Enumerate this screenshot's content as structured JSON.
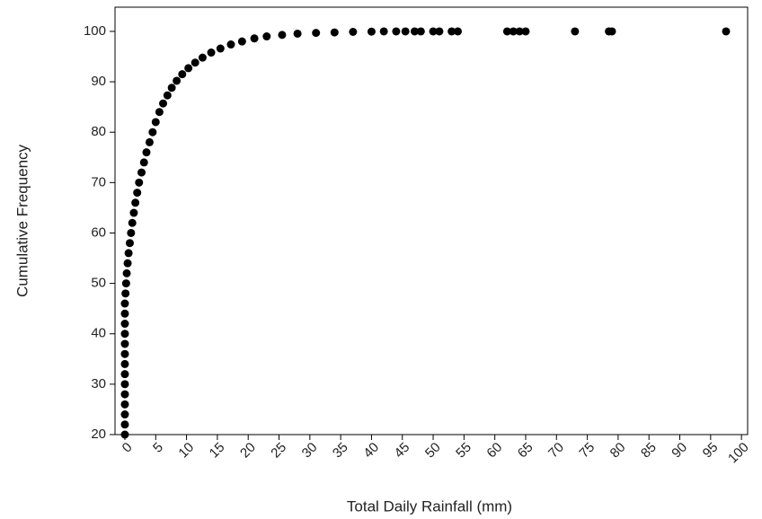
{
  "chart_data": {
    "type": "scatter",
    "x_label": "Total Daily Rainfall (mm)",
    "y_label": "Cumulative Frequency",
    "color": "#000000",
    "xlim": [
      -1.6,
      101
    ],
    "ylim": [
      20,
      104.8
    ],
    "xticks": [
      0,
      5,
      10,
      15,
      20,
      25,
      30,
      35,
      40,
      45,
      50,
      55,
      60,
      65,
      70,
      75,
      80,
      85,
      90,
      95,
      100
    ],
    "yticks": [
      20,
      30,
      40,
      50,
      60,
      70,
      80,
      90,
      100
    ],
    "grid": false,
    "x": [
      0,
      0,
      0,
      0,
      0,
      0,
      0,
      0,
      0,
      0,
      0,
      0,
      0,
      0,
      0.1,
      0.2,
      0.3,
      0.45,
      0.6,
      0.8,
      1.0,
      1.2,
      1.45,
      1.7,
      2.0,
      2.3,
      2.7,
      3.1,
      3.5,
      4.0,
      4.5,
      5.0,
      5.6,
      6.2,
      6.9,
      7.6,
      8.4,
      9.3,
      10.3,
      11.4,
      12.6,
      14.0,
      15.5,
      17.2,
      19.0,
      21.0,
      23.0,
      25.5,
      28.0,
      31.0,
      34.0,
      37.0,
      40.0,
      42.0,
      44.0,
      45.5,
      47.0,
      48.0,
      50.0,
      51.0,
      53.0,
      54.0,
      62.0,
      63.0,
      64.0,
      65.0,
      73.0,
      78.5,
      79.0,
      97.5
    ],
    "values": [
      20,
      22,
      24,
      26,
      28,
      30,
      32,
      34,
      36,
      38,
      40,
      42,
      44,
      46,
      48,
      50,
      52,
      54,
      56,
      58,
      60,
      62,
      64,
      66,
      68,
      70,
      72,
      74,
      76,
      78,
      80,
      82,
      84,
      85.7,
      87.3,
      88.8,
      90.2,
      91.5,
      92.7,
      93.8,
      94.8,
      95.8,
      96.6,
      97.4,
      98.0,
      98.6,
      99.0,
      99.3,
      99.55,
      99.7,
      99.8,
      99.9,
      99.95,
      100,
      100,
      100,
      100,
      100,
      100,
      100,
      100,
      100,
      100,
      100,
      100,
      100,
      100,
      100,
      100,
      100
    ]
  }
}
